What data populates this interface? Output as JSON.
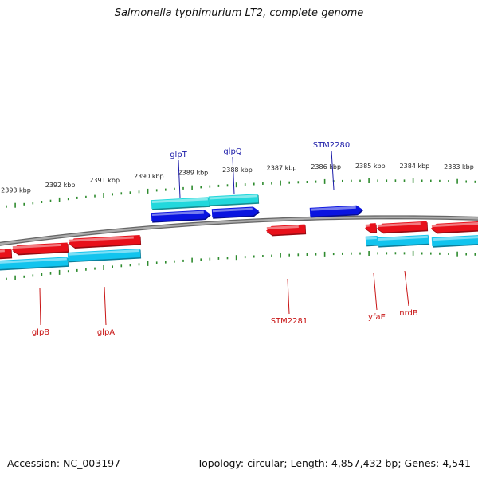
{
  "title": "Salmonella typhimurium LT2, complete genome",
  "footer": {
    "accession": "Accession: NC_003197",
    "summary": "Topology: circular; Length: 4,857,432 bp; Genes: 4,541"
  },
  "colors": {
    "forward_cds": "#0a14e0",
    "reverse_cds": "#e8101a",
    "forward_gene": "#22d8dc",
    "reverse_gene": "#12c4ee",
    "backbone": "#808080",
    "tick": "#2e8b2e",
    "forward_label": "#1a1aa8",
    "reverse_label": "#c81414"
  },
  "ticks": [
    {
      "label": "2393 kbp"
    },
    {
      "label": "2392 kbp"
    },
    {
      "label": "2391 kbp"
    },
    {
      "label": "2390 kbp"
    },
    {
      "label": "2389 kbp"
    },
    {
      "label": "2388 kbp"
    },
    {
      "label": "2387 kbp"
    },
    {
      "label": "2386 kbp"
    },
    {
      "label": "2385 kbp"
    },
    {
      "label": "2384 kbp"
    },
    {
      "label": "2383 kbp"
    }
  ],
  "genes": [
    {
      "name": "glpT",
      "strand": "forward"
    },
    {
      "name": "glpQ",
      "strand": "forward"
    },
    {
      "name": "STM2280",
      "strand": "forward"
    },
    {
      "name": "glpB",
      "strand": "reverse"
    },
    {
      "name": "glpA",
      "strand": "reverse"
    },
    {
      "name": "STM2281",
      "strand": "reverse"
    },
    {
      "name": "yfaE",
      "strand": "reverse"
    },
    {
      "name": "nrdB",
      "strand": "reverse"
    }
  ]
}
